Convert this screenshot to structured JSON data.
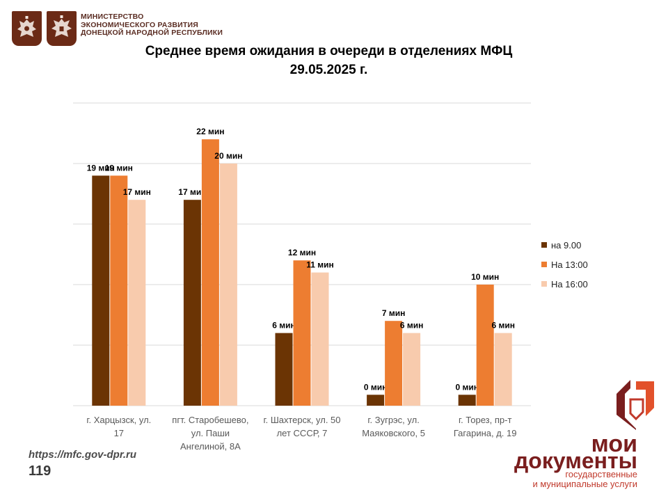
{
  "header": {
    "ministry_line1": "МИНИСТЕРСТВО",
    "ministry_line2": "ЭКОНОМИЧЕСКОГО РАЗВИТИЯ",
    "ministry_line3": "ДОНЕЦКОЙ НАРОДНОЙ РЕСПУБЛИКИ"
  },
  "footer": {
    "url": "https://mfc.gov-dpr.ru",
    "page_number": "119"
  },
  "brand": {
    "line1": "мои",
    "line2": "документы",
    "line3": "государственные",
    "line4": "и муниципальные услуги"
  },
  "colors": {
    "series_9": "#6b3404",
    "series_13": "#ed7d31",
    "series_16": "#f8cbad",
    "brand_dark": "#7a1e1e",
    "brand_accent": "#c0392b",
    "emblem": "#6b2a16"
  },
  "chart_data": {
    "type": "bar",
    "title_line1": "Среднее время ожидания в очереди в отделениях МФЦ",
    "title_line2": "29.05.2025   г.",
    "categories": [
      [
        "г. Харцызск, ул.",
        "17"
      ],
      [
        "пгт. Старобешево,",
        "ул. Паши",
        "Ангелиной, 8А"
      ],
      [
        "г. Шахтерск, ул. 50",
        "лет СССР, 7"
      ],
      [
        "г. Зугрэс, ул.",
        "Маяковского, 5"
      ],
      [
        "г. Торез, пр-т",
        "Гагарина, д. 19"
      ]
    ],
    "series": [
      {
        "name": "на 9.00",
        "values": [
          19,
          17,
          6,
          0,
          0
        ]
      },
      {
        "name": "На 13:00",
        "values": [
          19,
          22,
          12,
          7,
          10
        ]
      },
      {
        "name": "На 16:00",
        "values": [
          17,
          20,
          11,
          6,
          6
        ]
      }
    ],
    "value_labels": [
      [
        "19 мин",
        "17 мин",
        "6 мин",
        "0 мин",
        "0 мин"
      ],
      [
        "19 мин",
        "22 мин",
        "12 мин",
        "7 мин",
        "10 мин"
      ],
      [
        "17 мин",
        "20 мин",
        "11 мин",
        "6 мин",
        "6 мин"
      ]
    ],
    "ylim": [
      0,
      25
    ],
    "gridlines": [
      0,
      5,
      10,
      15,
      20,
      25
    ],
    "grid": true,
    "legend_position": "right"
  }
}
